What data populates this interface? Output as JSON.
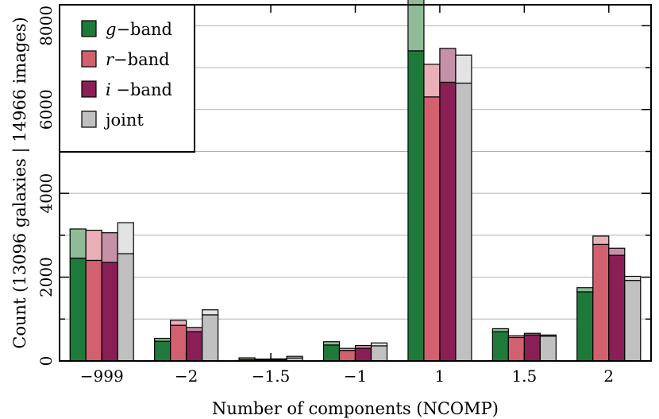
{
  "chart_data": {
    "type": "bar",
    "stacked_light_segments": true,
    "xlabel": "Number of components (NCOMP)",
    "ylabel": "Count (13096 galaxies | 14966 images)",
    "ylim": [
      0,
      8500
    ],
    "yticks": [
      0,
      2000,
      4000,
      6000,
      8000
    ],
    "grid": true,
    "legend_position": "top-left",
    "categories": [
      "−999",
      "−2",
      "−1.5",
      "−1",
      "1",
      "1.5",
      "2"
    ],
    "series": [
      {
        "name": "g−band",
        "legend_italic": "g",
        "legend_rest": "−band",
        "color": "#1e7a3a",
        "light_color": "#8fbc97",
        "values": [
          2450,
          470,
          30,
          380,
          7400,
          700,
          1650
        ],
        "totals": [
          3150,
          540,
          75,
          460,
          8750,
          770,
          1750
        ]
      },
      {
        "name": "r−band",
        "legend_italic": "r",
        "legend_rest": "−band",
        "color": "#d1616f",
        "light_color": "#e9b0b7",
        "values": [
          2400,
          850,
          25,
          250,
          6300,
          560,
          2780
        ],
        "totals": [
          3120,
          970,
          45,
          300,
          7080,
          600,
          2980
        ]
      },
      {
        "name": "i−band",
        "legend_italic": "i",
        "legend_rest": " −band",
        "color": "#8a1f55",
        "light_color": "#c590a8",
        "values": [
          2350,
          700,
          30,
          300,
          6650,
          620,
          2520
        ],
        "totals": [
          3060,
          800,
          50,
          370,
          7460,
          660,
          2690
        ]
      },
      {
        "name": "joint",
        "legend_italic": "",
        "legend_rest": "joint",
        "color": "#c0c0c0",
        "light_color": "#e3e3e3",
        "values": [
          2560,
          1100,
          70,
          360,
          6630,
          590,
          1920
        ],
        "totals": [
          3300,
          1220,
          110,
          430,
          7300,
          620,
          2020
        ]
      }
    ]
  }
}
